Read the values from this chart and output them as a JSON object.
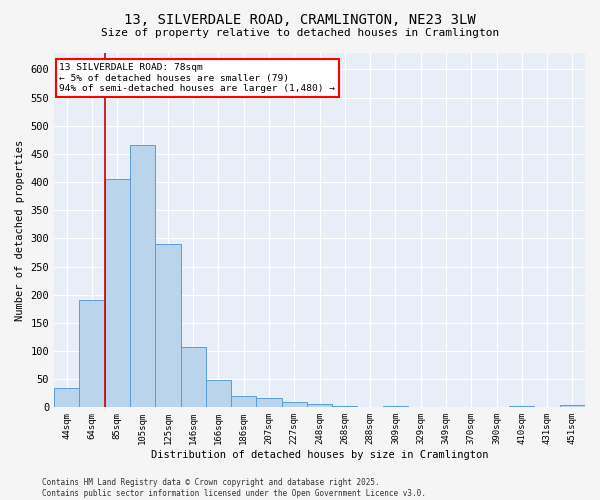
{
  "title_line1": "13, SILVERDALE ROAD, CRAMLINGTON, NE23 3LW",
  "title_line2": "Size of property relative to detached houses in Cramlington",
  "xlabel": "Distribution of detached houses by size in Cramlington",
  "ylabel": "Number of detached properties",
  "bar_labels": [
    "44sqm",
    "64sqm",
    "85sqm",
    "105sqm",
    "125sqm",
    "146sqm",
    "166sqm",
    "186sqm",
    "207sqm",
    "227sqm",
    "248sqm",
    "268sqm",
    "288sqm",
    "309sqm",
    "329sqm",
    "349sqm",
    "370sqm",
    "390sqm",
    "410sqm",
    "431sqm",
    "451sqm"
  ],
  "bar_values": [
    35,
    190,
    405,
    465,
    290,
    107,
    48,
    20,
    16,
    10,
    6,
    2,
    0,
    3,
    0,
    0,
    0,
    0,
    2,
    0,
    4
  ],
  "bar_color": "#bad4ec",
  "bar_edge_color": "#5b9bd5",
  "annotation_title": "13 SILVERDALE ROAD: 78sqm",
  "annotation_line2": "← 5% of detached houses are smaller (79)",
  "annotation_line3": "94% of semi-detached houses are larger (1,480) →",
  "vline_x": 1.5,
  "vline_color": "#cc0000",
  "ylim": [
    0,
    630
  ],
  "yticks": [
    0,
    50,
    100,
    150,
    200,
    250,
    300,
    350,
    400,
    450,
    500,
    550,
    600
  ],
  "background_color": "#e8eef8",
  "fig_background": "#f5f5f5",
  "grid_color": "#ffffff",
  "footer_line1": "Contains HM Land Registry data © Crown copyright and database right 2025.",
  "footer_line2": "Contains public sector information licensed under the Open Government Licence v3.0."
}
